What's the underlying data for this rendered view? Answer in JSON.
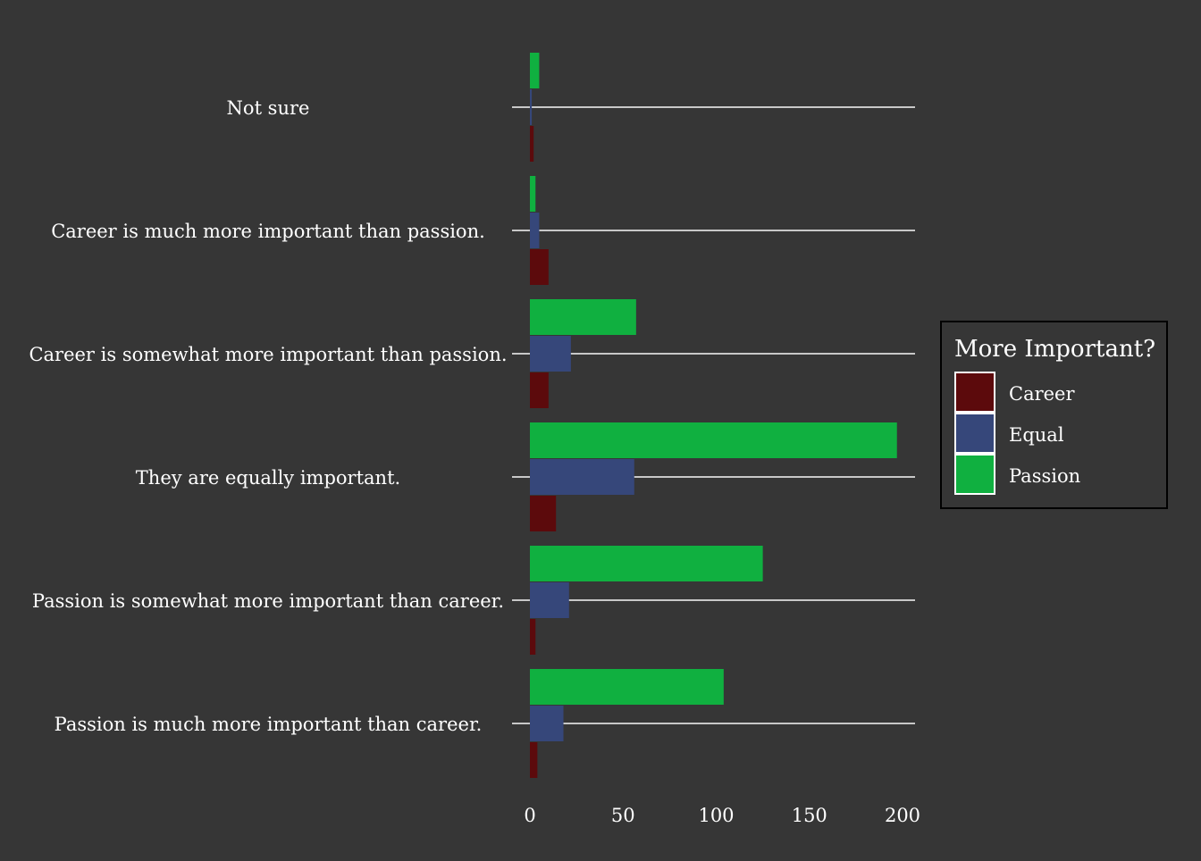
{
  "chart_data": {
    "type": "bar",
    "orientation": "horizontal",
    "categories": [
      "Not sure",
      "Career is much more important than passion.",
      "Career is somewhat more important than passion.",
      "They are equally important.",
      "Passion is somewhat more important than career.",
      "Passion is much more important than career."
    ],
    "series": [
      {
        "name": "Career",
        "color": "#5c0a0c",
        "values": [
          2,
          10,
          10,
          14,
          3,
          4
        ]
      },
      {
        "name": "Equal",
        "color": "#36477a",
        "values": [
          1,
          5,
          22,
          56,
          21,
          18
        ]
      },
      {
        "name": "Passion",
        "color": "#10b040",
        "values": [
          5,
          3,
          57,
          197,
          125,
          104
        ]
      }
    ],
    "x_ticks": [
      0,
      50,
      100,
      150,
      200
    ],
    "xlim": [
      0,
      206
    ],
    "legend": {
      "title": "More Important?",
      "position": "right"
    },
    "grid": {
      "horizontal": true,
      "color": "#c8c8c8"
    },
    "title": "",
    "xlabel": "",
    "ylabel": ""
  }
}
